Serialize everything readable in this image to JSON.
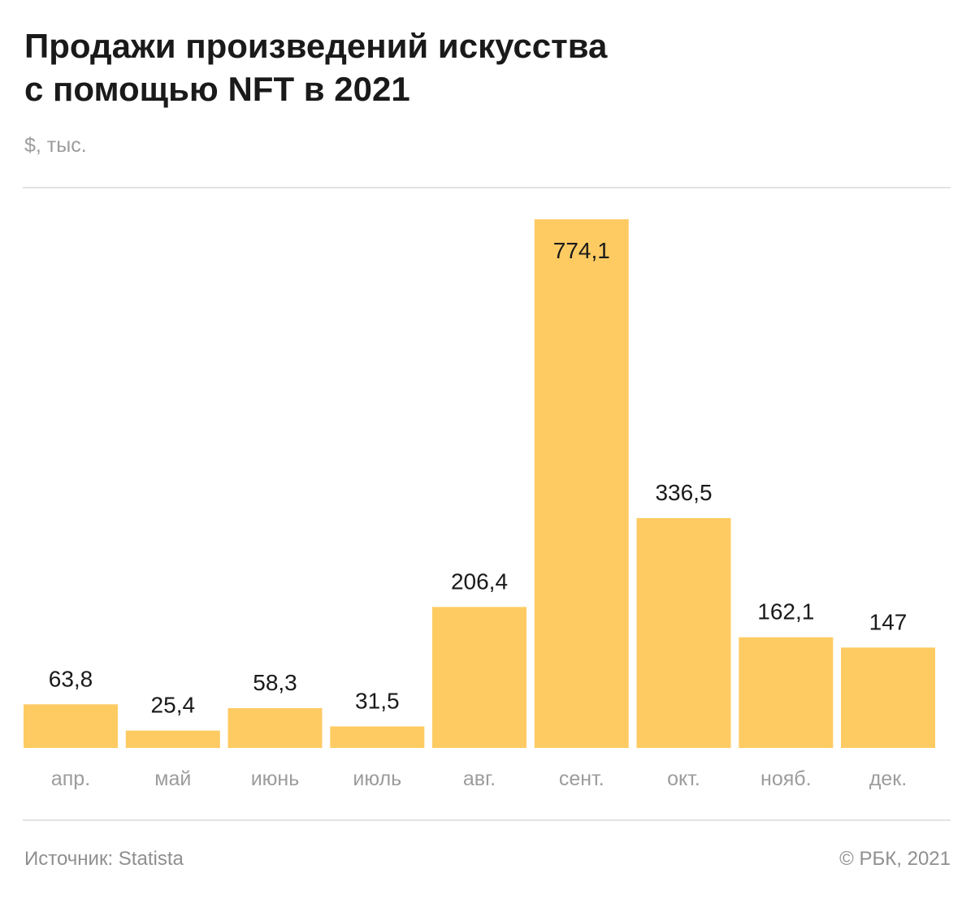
{
  "title_lines": [
    "Продажи произведений искусства",
    "с помощью NFT в 2021"
  ],
  "unit": "$, тыс.",
  "source": "Источник: Statista",
  "copyright": "© РБК, 2021",
  "colors": {
    "bar": "#FECB63",
    "value_label": "#1a1a1a",
    "category_label": "#9c9c9c"
  },
  "chart_data": {
    "type": "bar",
    "title": "Продажи произведений искусства с помощью NFT в 2021",
    "xlabel": "",
    "ylabel": "$, тыс.",
    "categories": [
      "апр.",
      "май",
      "июнь",
      "июль",
      "авг.",
      "сент.",
      "окт.",
      "нояб.",
      "дек."
    ],
    "values": [
      63.8,
      25.4,
      58.3,
      31.5,
      206.4,
      774.1,
      336.5,
      162.1,
      147
    ],
    "value_labels": [
      "63,8",
      "25,4",
      "58,3",
      "31,5",
      "206,4",
      "774,1",
      "336,5",
      "162,1",
      "147"
    ],
    "ylim": [
      0,
      774.1
    ],
    "grid": false,
    "legend": "none"
  }
}
